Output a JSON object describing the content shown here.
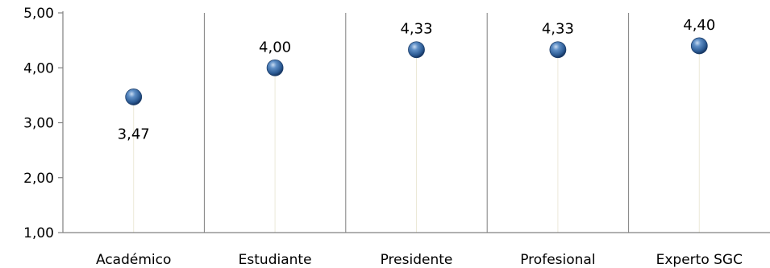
{
  "chart_data": {
    "type": "scatter",
    "categories": [
      "Académico",
      "Estudiante",
      "Presidente",
      "Profesional",
      "Experto SGC"
    ],
    "values": [
      3.47,
      4.0,
      4.33,
      4.33,
      4.4
    ],
    "value_labels": [
      "3,47",
      "4,00",
      "4,33",
      "4,33",
      "4,40"
    ],
    "label_position": [
      "below",
      "above",
      "above",
      "above",
      "above"
    ],
    "y_ticks": [
      "1,00",
      "2,00",
      "3,00",
      "4,00",
      "5,00"
    ],
    "ylim": [
      1,
      5
    ],
    "grid": true,
    "legend": "none",
    "marker_color": "#2e5f96"
  }
}
